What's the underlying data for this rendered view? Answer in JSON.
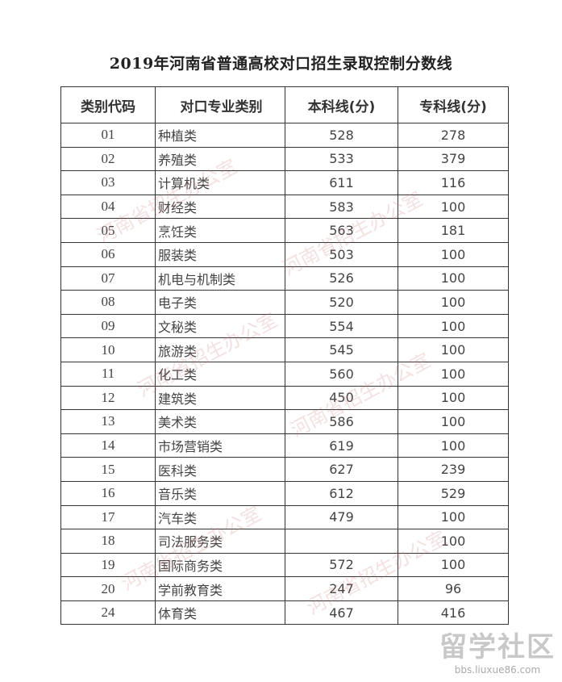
{
  "title": "2019年河南省普通高校对口招生录取控制分数线",
  "headers": [
    "类别代码",
    "对口专业类别",
    "本科线(分)",
    "专科线(分)"
  ],
  "rows": [
    [
      "01",
      "种植类",
      "528",
      "278"
    ],
    [
      "02",
      "养殖类",
      "533",
      "379"
    ],
    [
      "03",
      "计算机类",
      "611",
      "116"
    ],
    [
      "04",
      "财经类",
      "583",
      "100"
    ],
    [
      "05",
      "烹饪类",
      "563",
      "181"
    ],
    [
      "06",
      "服装类",
      "503",
      "100"
    ],
    [
      "07",
      "机电与机制类",
      "526",
      "100"
    ],
    [
      "08",
      "电子类",
      "520",
      "100"
    ],
    [
      "09",
      "文秘类",
      "554",
      "100"
    ],
    [
      "10",
      "旅游类",
      "545",
      "100"
    ],
    [
      "11",
      "化工类",
      "560",
      "100"
    ],
    [
      "12",
      "建筑类",
      "450",
      "100"
    ],
    [
      "13",
      "美术类",
      "586",
      "100"
    ],
    [
      "14",
      "市场营销类",
      "619",
      "100"
    ],
    [
      "15",
      "医科类",
      "627",
      "239"
    ],
    [
      "16",
      "音乐类",
      "612",
      "529"
    ],
    [
      "17",
      "汽车类",
      "479",
      "100"
    ],
    [
      "18",
      "司法服务类",
      "",
      "100"
    ],
    [
      "19",
      "国际商务类",
      "572",
      "100"
    ],
    [
      "20",
      "学前教育类",
      "247",
      "96"
    ],
    [
      "24",
      "体育类",
      "467",
      "416"
    ]
  ],
  "watermark": "河南省招生办公室",
  "logo": {
    "name": "留学社区",
    "url": "bbs.liuxue86.com"
  }
}
